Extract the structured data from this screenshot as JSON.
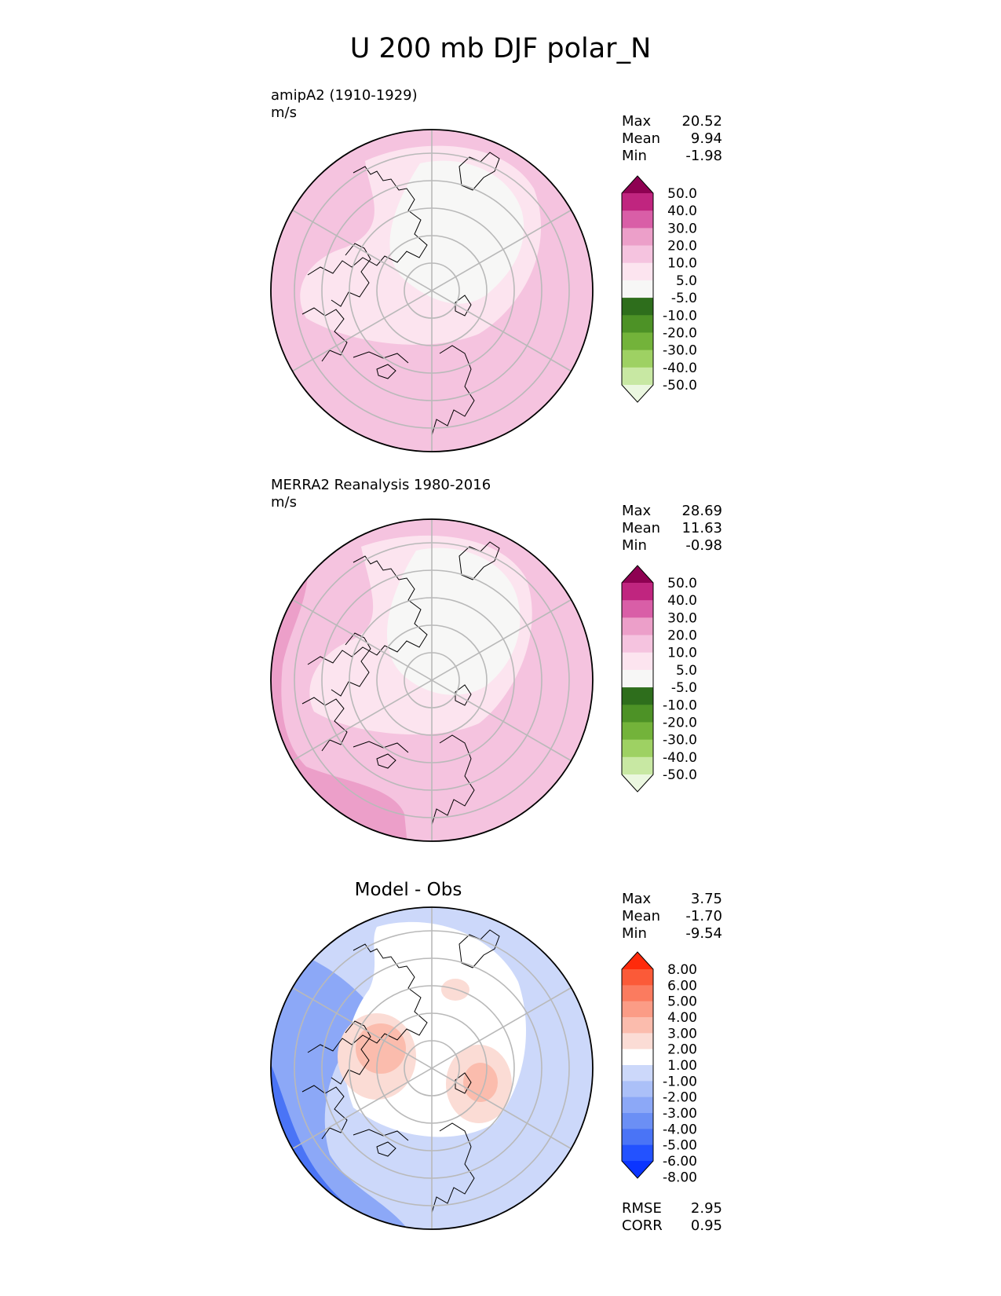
{
  "figure_title": "U 200 mb DJF polar_N",
  "colors": {
    "model_obs_scale": [
      "#ebf7e0",
      "#c8e8a3",
      "#9ed163",
      "#73b33a",
      "#4d9226",
      "#2e6e1c",
      "#f7f7f6",
      "#fce4ef",
      "#f5c3df",
      "#ec9fc9",
      "#d95ea7",
      "#c0257f",
      "#8e0152"
    ],
    "diff_scale": [
      "#0b35ff",
      "#2352ff",
      "#4a74f6",
      "#6b8ff5",
      "#8ca8f7",
      "#abc0f8",
      "#ccd8fa",
      "#ffffff",
      "#fbdcd5",
      "#fbbcad",
      "#fb9c86",
      "#fb7b5f",
      "#fb5a38",
      "#ff2a0b"
    ]
  },
  "panels": [
    {
      "id": "model",
      "title": "amipA2 (1910-1929)",
      "units": "m/s",
      "stats": [
        {
          "label": "Max",
          "value": "20.52"
        },
        {
          "label": "Mean",
          "value": "9.94"
        },
        {
          "label": "Min",
          "value": "-1.98"
        }
      ]
    },
    {
      "id": "obs",
      "title": "MERRA2 Reanalysis 1980-2016",
      "units": "m/s",
      "stats": [
        {
          "label": "Max",
          "value": "28.69"
        },
        {
          "label": "Mean",
          "value": "11.63"
        },
        {
          "label": "Min",
          "value": "-0.98"
        }
      ]
    },
    {
      "id": "diff",
      "title": "Model - Obs",
      "stats": [
        {
          "label": "Max",
          "value": "3.75"
        },
        {
          "label": "Mean",
          "value": "-1.70"
        },
        {
          "label": "Min",
          "value": "-9.54"
        }
      ],
      "metrics": [
        {
          "label": "RMSE",
          "value": "2.95"
        },
        {
          "label": "CORR",
          "value": "0.95"
        }
      ]
    }
  ],
  "chart_data": [
    {
      "type": "heatmap",
      "projection": "north-polar-stereographic",
      "title": "amipA2 (1910-1929)",
      "units": "m/s",
      "colorbar_levels": [
        -50.0,
        -40.0,
        -30.0,
        -20.0,
        -10.0,
        -5.0,
        5.0,
        10.0,
        20.0,
        30.0,
        40.0,
        50.0
      ],
      "colorbar_tick_labels": [
        "-50.0",
        "-40.0",
        "-30.0",
        "-20.0",
        "-10.0",
        "-5.0",
        "5.0",
        "10.0",
        "20.0",
        "30.0",
        "40.0",
        "50.0"
      ],
      "colorbar_extend": "both",
      "stats": {
        "max": 20.52,
        "mean": 9.94,
        "min": -1.98
      }
    },
    {
      "type": "heatmap",
      "projection": "north-polar-stereographic",
      "title": "MERRA2 Reanalysis 1980-2016",
      "units": "m/s",
      "colorbar_levels": [
        -50.0,
        -40.0,
        -30.0,
        -20.0,
        -10.0,
        -5.0,
        5.0,
        10.0,
        20.0,
        30.0,
        40.0,
        50.0
      ],
      "colorbar_tick_labels": [
        "-50.0",
        "-40.0",
        "-30.0",
        "-20.0",
        "-10.0",
        "-5.0",
        "5.0",
        "10.0",
        "20.0",
        "30.0",
        "40.0",
        "50.0"
      ],
      "colorbar_extend": "both",
      "stats": {
        "max": 28.69,
        "mean": 11.63,
        "min": -0.98
      }
    },
    {
      "type": "heatmap",
      "projection": "north-polar-stereographic",
      "title": "Model - Obs",
      "colorbar_levels": [
        -8.0,
        -6.0,
        -5.0,
        -4.0,
        -3.0,
        -2.0,
        -1.0,
        1.0,
        2.0,
        3.0,
        4.0,
        5.0,
        6.0,
        8.0
      ],
      "colorbar_tick_labels": [
        "-8.00",
        "-6.00",
        "-5.00",
        "-4.00",
        "-3.00",
        "-2.00",
        "-1.00",
        "1.00",
        "2.00",
        "3.00",
        "4.00",
        "5.00",
        "6.00",
        "8.00"
      ],
      "colorbar_extend": "both",
      "stats": {
        "max": 3.75,
        "mean": -1.7,
        "min": -9.54,
        "rmse": 2.95,
        "corr": 0.95
      }
    }
  ]
}
